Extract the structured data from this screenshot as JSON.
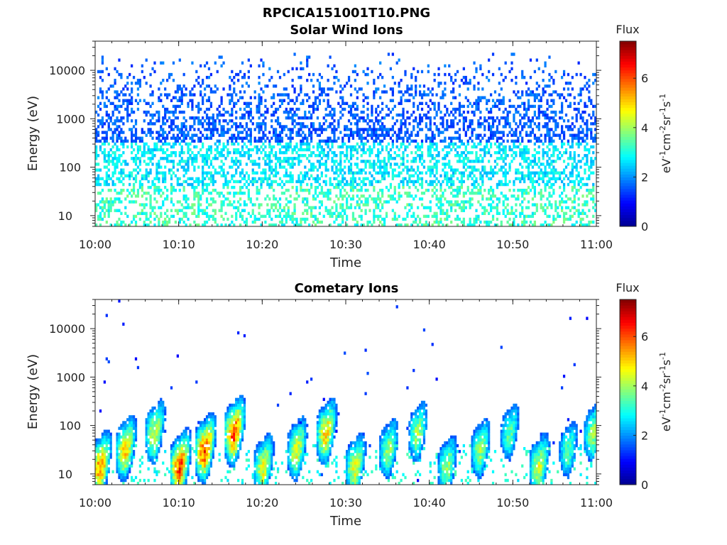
{
  "figure_title": "RPCICA151001T10.PNG",
  "colormap": [
    "#00008f",
    "#0000ff",
    "#0080ff",
    "#00ffff",
    "#80ff80",
    "#ffff00",
    "#ff8000",
    "#ff0000",
    "#800000"
  ],
  "chart_data": [
    {
      "type": "heatmap",
      "title": "Solar Wind Ions",
      "xlabel": "Time",
      "ylabel": "Energy (eV)",
      "xticks": [
        "10:00",
        "10:10",
        "10:20",
        "10:30",
        "10:40",
        "10:50",
        "11:00"
      ],
      "xlim": [
        "10:00",
        "11:00"
      ],
      "yscale": "log",
      "ylim": [
        6,
        40000
      ],
      "yticks": [
        10,
        100,
        1000,
        10000
      ],
      "ytick_labels": [
        "10",
        "100",
        "1000",
        "10000"
      ],
      "colorbar": {
        "title": "Flux",
        "label": "eV-1cm-2sr-1s-1",
        "range": [
          0,
          7.5
        ],
        "ticks": [
          0,
          2,
          4,
          6
        ],
        "tick_labels": [
          "0",
          "2",
          "4",
          "6"
        ]
      },
      "pattern": "sparse",
      "descriptive_bands": [
        {
          "energy_range_eV": [
            300,
            20000
          ],
          "flux_range": [
            1,
            2
          ]
        },
        {
          "energy_range_eV": [
            40,
            300
          ],
          "flux_range": [
            2,
            3
          ]
        },
        {
          "energy_range_eV": [
            6,
            40
          ],
          "flux_range": [
            2.5,
            4
          ]
        }
      ]
    },
    {
      "type": "heatmap",
      "title": "Cometary Ions",
      "xlabel": "Time",
      "ylabel": "Energy (eV)",
      "xticks": [
        "10:00",
        "10:10",
        "10:20",
        "10:30",
        "10:40",
        "10:50",
        "11:00"
      ],
      "xlim": [
        "10:00",
        "11:00"
      ],
      "yscale": "log",
      "ylim": [
        6,
        40000
      ],
      "yticks": [
        10,
        100,
        1000,
        10000
      ],
      "ytick_labels": [
        "10",
        "100",
        "1000",
        "10000"
      ],
      "colorbar": {
        "title": "Flux",
        "label": "eV-1cm-2sr-1s-1",
        "range": [
          0,
          7.5
        ],
        "ticks": [
          0,
          2,
          4,
          6
        ],
        "tick_labels": [
          "0",
          "2",
          "4",
          "6"
        ]
      },
      "pattern": "bursts",
      "burst_times_min": [
        0.5,
        3.5,
        7,
        10,
        13,
        16.5,
        20,
        24,
        27.5,
        31,
        35,
        38.5,
        42,
        46,
        49.5,
        53,
        56.5,
        59.5
      ],
      "burst_peak_flux": [
        5.5,
        5,
        4.5,
        6,
        6,
        6,
        4.5,
        4.5,
        5,
        4.5,
        4,
        4,
        4,
        4,
        3.5,
        4.5,
        3.5,
        4
      ],
      "burst_energy_range_eV": [
        10,
        500
      ]
    }
  ]
}
